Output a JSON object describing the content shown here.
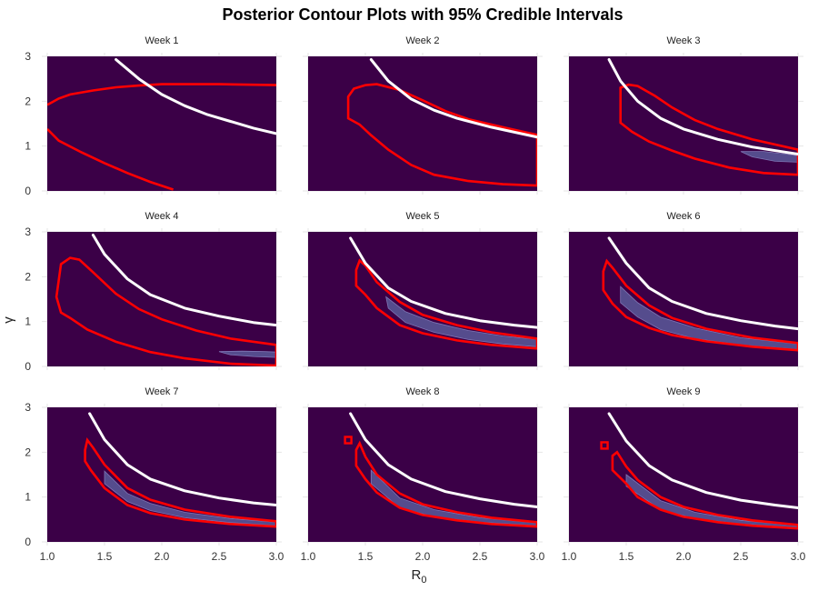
{
  "chart_data": {
    "type": "contour",
    "title": "Posterior Contour Plots with 95% Credible Intervals",
    "xlabel": "R",
    "xlabel_subscript": "0",
    "ylabel": "γ",
    "xlim": [
      1.0,
      3.0
    ],
    "ylim": [
      0,
      3
    ],
    "x_ticks": [
      "1.0",
      "1.5",
      "2.0",
      "2.5",
      "3.0"
    ],
    "y_ticks": [
      "0",
      "1",
      "2",
      "3"
    ],
    "colors": {
      "panel_bg": "#3b0047",
      "credible_interval": "#ff0000",
      "reference_curve": "#ffffff",
      "posterior_density": "#5a5a9a"
    },
    "legend": "none",
    "panels": [
      {
        "label": "Week 1",
        "white_curve": [
          [
            1.6,
            2.93
          ],
          [
            1.8,
            2.5
          ],
          [
            2.0,
            2.15
          ],
          [
            2.2,
            1.9
          ],
          [
            2.4,
            1.7
          ],
          [
            2.6,
            1.55
          ],
          [
            2.8,
            1.4
          ],
          [
            3.0,
            1.28
          ]
        ],
        "ci_upper": [
          [
            1.0,
            1.92
          ],
          [
            1.1,
            2.06
          ],
          [
            1.2,
            2.15
          ],
          [
            1.4,
            2.24
          ],
          [
            1.6,
            2.31
          ],
          [
            1.8,
            2.35
          ],
          [
            2.0,
            2.38
          ],
          [
            2.5,
            2.38
          ],
          [
            3.0,
            2.36
          ]
        ],
        "ci_lower": [
          [
            1.0,
            1.38
          ],
          [
            1.1,
            1.12
          ],
          [
            1.3,
            0.86
          ],
          [
            1.5,
            0.62
          ],
          [
            1.7,
            0.4
          ],
          [
            1.9,
            0.2
          ],
          [
            2.1,
            0.03
          ]
        ]
      },
      {
        "label": "Week 2",
        "white_curve": [
          [
            1.55,
            2.93
          ],
          [
            1.7,
            2.45
          ],
          [
            1.9,
            2.05
          ],
          [
            2.1,
            1.8
          ],
          [
            2.3,
            1.62
          ],
          [
            2.6,
            1.42
          ],
          [
            3.0,
            1.2
          ]
        ],
        "ci_region": [
          [
            1.35,
            2.1
          ],
          [
            1.4,
            2.28
          ],
          [
            1.5,
            2.36
          ],
          [
            1.6,
            2.38
          ],
          [
            1.8,
            2.25
          ],
          [
            2.0,
            2.02
          ],
          [
            2.2,
            1.78
          ],
          [
            2.4,
            1.6
          ],
          [
            2.7,
            1.42
          ],
          [
            3.0,
            1.25
          ],
          [
            3.0,
            0.12
          ],
          [
            2.7,
            0.15
          ],
          [
            2.4,
            0.22
          ],
          [
            2.1,
            0.36
          ],
          [
            1.9,
            0.58
          ],
          [
            1.7,
            0.92
          ],
          [
            1.55,
            1.24
          ],
          [
            1.45,
            1.48
          ],
          [
            1.35,
            1.62
          ]
        ]
      },
      {
        "label": "Week 3",
        "white_curve": [
          [
            1.35,
            2.93
          ],
          [
            1.45,
            2.45
          ],
          [
            1.6,
            2.0
          ],
          [
            1.8,
            1.62
          ],
          [
            2.0,
            1.38
          ],
          [
            2.3,
            1.15
          ],
          [
            2.6,
            0.98
          ],
          [
            3.0,
            0.82
          ]
        ],
        "ci_region": [
          [
            1.45,
            2.3
          ],
          [
            1.52,
            2.37
          ],
          [
            1.6,
            2.34
          ],
          [
            1.75,
            2.12
          ],
          [
            1.9,
            1.86
          ],
          [
            2.1,
            1.58
          ],
          [
            2.3,
            1.38
          ],
          [
            2.6,
            1.15
          ],
          [
            3.0,
            0.92
          ],
          [
            3.0,
            0.36
          ],
          [
            2.7,
            0.4
          ],
          [
            2.4,
            0.52
          ],
          [
            2.1,
            0.72
          ],
          [
            1.9,
            0.9
          ],
          [
            1.7,
            1.1
          ],
          [
            1.55,
            1.32
          ],
          [
            1.45,
            1.52
          ]
        ],
        "density_region": [
          [
            2.5,
            0.88
          ],
          [
            2.7,
            0.88
          ],
          [
            2.9,
            0.82
          ],
          [
            3.0,
            0.78
          ],
          [
            3.0,
            0.64
          ],
          [
            2.8,
            0.66
          ],
          [
            2.6,
            0.76
          ]
        ]
      },
      {
        "label": "Week 4",
        "white_curve": [
          [
            1.4,
            2.93
          ],
          [
            1.5,
            2.5
          ],
          [
            1.7,
            1.95
          ],
          [
            1.9,
            1.6
          ],
          [
            2.2,
            1.3
          ],
          [
            2.5,
            1.12
          ],
          [
            2.8,
            0.98
          ],
          [
            3.0,
            0.92
          ]
        ],
        "ci_region": [
          [
            1.08,
            1.55
          ],
          [
            1.12,
            2.28
          ],
          [
            1.2,
            2.42
          ],
          [
            1.28,
            2.38
          ],
          [
            1.4,
            2.1
          ],
          [
            1.6,
            1.62
          ],
          [
            1.8,
            1.28
          ],
          [
            2.0,
            1.05
          ],
          [
            2.3,
            0.8
          ],
          [
            2.6,
            0.62
          ],
          [
            3.0,
            0.48
          ],
          [
            3.0,
            0.02
          ],
          [
            2.6,
            0.06
          ],
          [
            2.2,
            0.18
          ],
          [
            1.9,
            0.32
          ],
          [
            1.6,
            0.55
          ],
          [
            1.35,
            0.82
          ],
          [
            1.2,
            1.08
          ],
          [
            1.12,
            1.2
          ]
        ],
        "density_region": [
          [
            2.5,
            0.33
          ],
          [
            2.7,
            0.34
          ],
          [
            2.9,
            0.33
          ],
          [
            3.0,
            0.32
          ],
          [
            3.0,
            0.2
          ],
          [
            2.8,
            0.22
          ],
          [
            2.6,
            0.26
          ]
        ]
      },
      {
        "label": "Week 5",
        "white_curve": [
          [
            1.37,
            2.86
          ],
          [
            1.5,
            2.3
          ],
          [
            1.7,
            1.75
          ],
          [
            1.9,
            1.45
          ],
          [
            2.2,
            1.18
          ],
          [
            2.5,
            1.02
          ],
          [
            2.8,
            0.92
          ],
          [
            3.0,
            0.87
          ]
        ],
        "ci_region": [
          [
            1.42,
            2.15
          ],
          [
            1.45,
            2.36
          ],
          [
            1.5,
            2.25
          ],
          [
            1.6,
            1.88
          ],
          [
            1.8,
            1.44
          ],
          [
            2.0,
            1.15
          ],
          [
            2.3,
            0.92
          ],
          [
            2.6,
            0.76
          ],
          [
            3.0,
            0.62
          ],
          [
            3.0,
            0.4
          ],
          [
            2.6,
            0.48
          ],
          [
            2.3,
            0.58
          ],
          [
            2.0,
            0.74
          ],
          [
            1.8,
            0.92
          ],
          [
            1.6,
            1.3
          ],
          [
            1.5,
            1.6
          ],
          [
            1.42,
            1.8
          ]
        ],
        "density_region": [
          [
            1.68,
            1.55
          ],
          [
            1.85,
            1.22
          ],
          [
            2.1,
            0.98
          ],
          [
            2.4,
            0.8
          ],
          [
            2.7,
            0.68
          ],
          [
            3.0,
            0.6
          ],
          [
            3.0,
            0.44
          ],
          [
            2.7,
            0.5
          ],
          [
            2.4,
            0.6
          ],
          [
            2.1,
            0.76
          ],
          [
            1.85,
            0.98
          ],
          [
            1.7,
            1.3
          ]
        ]
      },
      {
        "label": "Week 6",
        "white_curve": [
          [
            1.35,
            2.86
          ],
          [
            1.5,
            2.3
          ],
          [
            1.7,
            1.75
          ],
          [
            1.9,
            1.45
          ],
          [
            2.2,
            1.18
          ],
          [
            2.5,
            1.02
          ],
          [
            2.8,
            0.9
          ],
          [
            3.0,
            0.84
          ]
        ],
        "ci_region": [
          [
            1.3,
            2.12
          ],
          [
            1.33,
            2.35
          ],
          [
            1.38,
            2.2
          ],
          [
            1.5,
            1.8
          ],
          [
            1.7,
            1.36
          ],
          [
            1.9,
            1.08
          ],
          [
            2.2,
            0.84
          ],
          [
            2.6,
            0.64
          ],
          [
            3.0,
            0.52
          ],
          [
            3.0,
            0.36
          ],
          [
            2.6,
            0.44
          ],
          [
            2.2,
            0.56
          ],
          [
            1.9,
            0.7
          ],
          [
            1.7,
            0.86
          ],
          [
            1.5,
            1.1
          ],
          [
            1.38,
            1.4
          ],
          [
            1.3,
            1.7
          ]
        ],
        "density_region": [
          [
            1.45,
            1.78
          ],
          [
            1.6,
            1.42
          ],
          [
            1.8,
            1.1
          ],
          [
            2.1,
            0.86
          ],
          [
            2.5,
            0.64
          ],
          [
            3.0,
            0.5
          ],
          [
            3.0,
            0.38
          ],
          [
            2.5,
            0.48
          ],
          [
            2.1,
            0.62
          ],
          [
            1.8,
            0.82
          ],
          [
            1.6,
            1.1
          ],
          [
            1.45,
            1.42
          ]
        ]
      },
      {
        "label": "Week 7",
        "white_curve": [
          [
            1.37,
            2.86
          ],
          [
            1.5,
            2.28
          ],
          [
            1.7,
            1.72
          ],
          [
            1.9,
            1.4
          ],
          [
            2.2,
            1.14
          ],
          [
            2.5,
            0.98
          ],
          [
            2.8,
            0.87
          ],
          [
            3.0,
            0.82
          ]
        ],
        "ci_region": [
          [
            1.33,
            2.05
          ],
          [
            1.35,
            2.27
          ],
          [
            1.4,
            2.1
          ],
          [
            1.5,
            1.72
          ],
          [
            1.7,
            1.2
          ],
          [
            1.9,
            0.94
          ],
          [
            2.2,
            0.72
          ],
          [
            2.6,
            0.56
          ],
          [
            3.0,
            0.46
          ],
          [
            3.0,
            0.34
          ],
          [
            2.6,
            0.4
          ],
          [
            2.2,
            0.5
          ],
          [
            1.9,
            0.64
          ],
          [
            1.7,
            0.82
          ],
          [
            1.5,
            1.2
          ],
          [
            1.38,
            1.6
          ],
          [
            1.33,
            1.8
          ]
        ],
        "density_region": [
          [
            1.5,
            1.58
          ],
          [
            1.7,
            1.08
          ],
          [
            1.9,
            0.86
          ],
          [
            2.2,
            0.66
          ],
          [
            2.6,
            0.52
          ],
          [
            3.0,
            0.44
          ],
          [
            3.0,
            0.36
          ],
          [
            2.6,
            0.43
          ],
          [
            2.2,
            0.54
          ],
          [
            1.9,
            0.7
          ],
          [
            1.7,
            0.9
          ],
          [
            1.5,
            1.3
          ]
        ]
      },
      {
        "label": "Week 8",
        "white_curve": [
          [
            1.37,
            2.86
          ],
          [
            1.5,
            2.28
          ],
          [
            1.7,
            1.72
          ],
          [
            1.9,
            1.4
          ],
          [
            2.2,
            1.12
          ],
          [
            2.5,
            0.96
          ],
          [
            2.8,
            0.84
          ],
          [
            3.0,
            0.78
          ]
        ],
        "ci_region": [
          [
            1.42,
            2.05
          ],
          [
            1.45,
            2.2
          ],
          [
            1.5,
            1.9
          ],
          [
            1.6,
            1.5
          ],
          [
            1.8,
            1.08
          ],
          [
            2.0,
            0.84
          ],
          [
            2.3,
            0.66
          ],
          [
            2.6,
            0.54
          ],
          [
            3.0,
            0.44
          ],
          [
            3.0,
            0.34
          ],
          [
            2.6,
            0.4
          ],
          [
            2.3,
            0.48
          ],
          [
            2.0,
            0.6
          ],
          [
            1.8,
            0.76
          ],
          [
            1.6,
            1.1
          ],
          [
            1.5,
            1.4
          ],
          [
            1.42,
            1.7
          ]
        ],
        "density_region": [
          [
            1.55,
            1.6
          ],
          [
            1.8,
            0.98
          ],
          [
            2.1,
            0.72
          ],
          [
            2.5,
            0.54
          ],
          [
            3.0,
            0.42
          ],
          [
            3.0,
            0.36
          ],
          [
            2.5,
            0.44
          ],
          [
            2.1,
            0.56
          ],
          [
            1.8,
            0.76
          ],
          [
            1.55,
            1.3
          ]
        ],
        "ci_islands": [
          [
            1.35,
            2.27
          ]
        ]
      },
      {
        "label": "Week 9",
        "white_curve": [
          [
            1.35,
            2.86
          ],
          [
            1.5,
            2.25
          ],
          [
            1.7,
            1.7
          ],
          [
            1.9,
            1.38
          ],
          [
            2.2,
            1.1
          ],
          [
            2.5,
            0.93
          ],
          [
            2.8,
            0.82
          ],
          [
            3.0,
            0.76
          ]
        ],
        "ci_region": [
          [
            1.38,
            1.92
          ],
          [
            1.42,
            2.0
          ],
          [
            1.5,
            1.68
          ],
          [
            1.6,
            1.38
          ],
          [
            1.8,
            1.0
          ],
          [
            2.0,
            0.78
          ],
          [
            2.3,
            0.6
          ],
          [
            2.6,
            0.48
          ],
          [
            3.0,
            0.38
          ],
          [
            3.0,
            0.3
          ],
          [
            2.6,
            0.36
          ],
          [
            2.3,
            0.44
          ],
          [
            2.0,
            0.56
          ],
          [
            1.8,
            0.72
          ],
          [
            1.6,
            1.0
          ],
          [
            1.5,
            1.3
          ],
          [
            1.38,
            1.6
          ]
        ],
        "density_region": [
          [
            1.5,
            1.5
          ],
          [
            1.8,
            0.92
          ],
          [
            2.1,
            0.66
          ],
          [
            2.5,
            0.48
          ],
          [
            3.0,
            0.36
          ],
          [
            3.0,
            0.32
          ],
          [
            2.5,
            0.4
          ],
          [
            2.1,
            0.52
          ],
          [
            1.8,
            0.72
          ],
          [
            1.5,
            1.24
          ]
        ],
        "ci_islands": [
          [
            1.31,
            2.15
          ]
        ]
      }
    ]
  }
}
